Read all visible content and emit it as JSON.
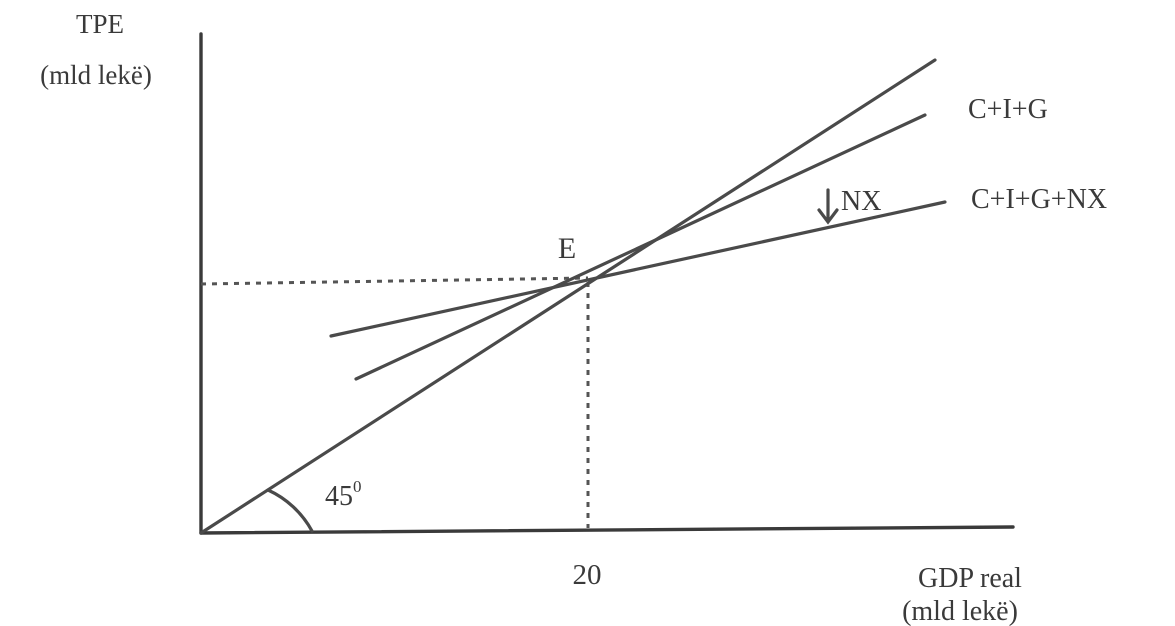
{
  "y_axis_label": {
    "line1": "TPE",
    "line2": "(mld lekë)"
  },
  "x_axis_label": {
    "line1": "GDP real",
    "line2": "(mld lekë)"
  },
  "x_tick": "20",
  "equilibrium_label": "E",
  "angle_label": {
    "value": "45",
    "superscript": "0"
  },
  "shift_label": "NX",
  "curves": {
    "cig": "C+I+G",
    "cignx": "C+I+G+NX"
  }
}
